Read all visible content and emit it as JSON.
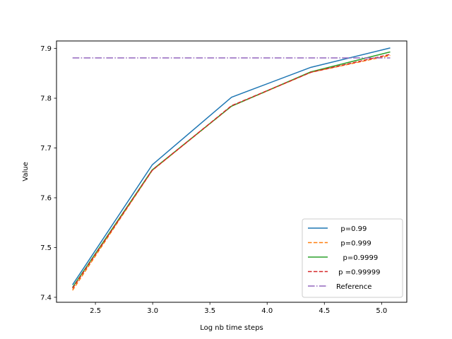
{
  "chart_data": {
    "type": "line",
    "title": "",
    "xlabel": "Log nb time  steps",
    "ylabel": "Value",
    "xlim": [
      2.16,
      5.22
    ],
    "ylim": [
      7.39,
      7.915
    ],
    "xticks": [
      2.5,
      3.0,
      3.5,
      4.0,
      4.5,
      5.0
    ],
    "xtick_labels": [
      "2.5",
      "3.0",
      "3.5",
      "4.0",
      "4.5",
      "5.0"
    ],
    "yticks": [
      7.4,
      7.5,
      7.6,
      7.7,
      7.8,
      7.9
    ],
    "ytick_labels": [
      "7.4",
      "7.5",
      "7.6",
      "7.7",
      "7.8",
      "7.9"
    ],
    "grid": false,
    "legend_position": "lower-right",
    "series": [
      {
        "name": "  p=0.99",
        "color": "#1f77b4",
        "dash": "solid",
        "x": [
          2.3,
          2.996,
          3.689,
          4.382,
          5.075
        ],
        "y": [
          7.425,
          7.666,
          7.802,
          7.862,
          7.901
        ]
      },
      {
        "name": "  p=0.999",
        "color": "#ff7f0e",
        "dash": "dashed",
        "x": [
          2.3,
          2.996,
          3.689,
          4.382,
          5.075
        ],
        "y": [
          7.414,
          7.655,
          7.784,
          7.852,
          7.886
        ]
      },
      {
        "name": "   p=0.9999",
        "color": "#2ca02c",
        "dash": "solid",
        "x": [
          2.3,
          2.996,
          3.689,
          4.382,
          5.075
        ],
        "y": [
          7.42,
          7.656,
          7.784,
          7.853,
          7.893
        ]
      },
      {
        "name": " p =0.99999",
        "color": "#d62728",
        "dash": "dashed",
        "x": [
          2.3,
          2.996,
          3.689,
          4.382,
          5.075
        ],
        "y": [
          7.418,
          7.655,
          7.785,
          7.852,
          7.888
        ]
      },
      {
        "name": "Reference",
        "color": "#9467bd",
        "dash": "dashdot",
        "x": [
          2.3,
          5.075
        ],
        "y": [
          7.881,
          7.881
        ]
      }
    ]
  }
}
